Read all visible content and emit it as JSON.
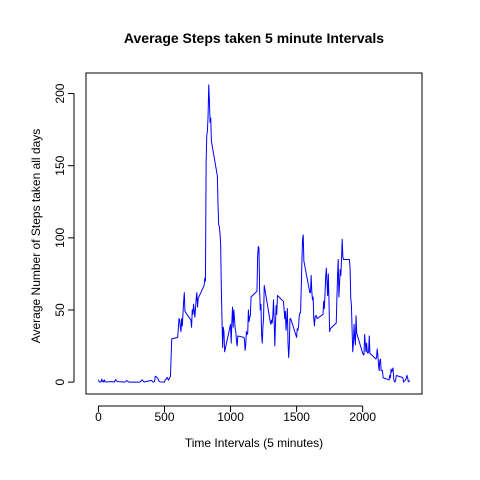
{
  "chart_data": {
    "type": "line",
    "title": "Average Steps taken 5 minute Intervals",
    "xlabel": "Time Intervals (5 minutes)",
    "ylabel": "Average Number of Steps taken all days",
    "xlim": [
      0,
      2355
    ],
    "ylim": [
      0,
      206
    ],
    "x_ticks": [
      0,
      500,
      1000,
      1500,
      2000
    ],
    "y_ticks": [
      0,
      50,
      100,
      150,
      200
    ],
    "grid": false,
    "legend": "none",
    "line_color": "#0000ff",
    "series": [
      {
        "points": [
          [
            0,
            1.7
          ],
          [
            5,
            0.3
          ],
          [
            10,
            0.1
          ],
          [
            15,
            0.2
          ],
          [
            20,
            0.1
          ],
          [
            25,
            2.1
          ],
          [
            30,
            0.5
          ],
          [
            35,
            0.9
          ],
          [
            40,
            0
          ],
          [
            45,
            1.5
          ],
          [
            50,
            0.3
          ],
          [
            55,
            0.1
          ],
          [
            100,
            0.3
          ],
          [
            110,
            0.2
          ],
          [
            120,
            0
          ],
          [
            130,
            1.8
          ],
          [
            140,
            0.4
          ],
          [
            150,
            0.3
          ],
          [
            200,
            0
          ],
          [
            215,
            1.1
          ],
          [
            230,
            0
          ],
          [
            245,
            0
          ],
          [
            300,
            0
          ],
          [
            315,
            0
          ],
          [
            330,
            1.6
          ],
          [
            345,
            0.1
          ],
          [
            400,
            1.2
          ],
          [
            415,
            0
          ],
          [
            425,
            0.4
          ],
          [
            430,
            4.1
          ],
          [
            440,
            3.5
          ],
          [
            450,
            2.5
          ],
          [
            455,
            1.1
          ],
          [
            465,
            0.2
          ],
          [
            500,
            0
          ],
          [
            505,
            1.6
          ],
          [
            515,
            2.2
          ],
          [
            520,
            3.3
          ],
          [
            530,
            1.4
          ],
          [
            545,
            4.0
          ],
          [
            550,
            17
          ],
          [
            555,
            30
          ],
          [
            600,
            31
          ],
          [
            610,
            44
          ],
          [
            615,
            43
          ],
          [
            620,
            38
          ],
          [
            625,
            35
          ],
          [
            630,
            44
          ],
          [
            635,
            39
          ],
          [
            640,
            48
          ],
          [
            645,
            56
          ],
          [
            650,
            62
          ],
          [
            655,
            49
          ],
          [
            700,
            43
          ],
          [
            705,
            38
          ],
          [
            710,
            50
          ],
          [
            715,
            47
          ],
          [
            720,
            54
          ],
          [
            730,
            45
          ],
          [
            740,
            58
          ],
          [
            745,
            62
          ],
          [
            750,
            52
          ],
          [
            755,
            58
          ],
          [
            800,
            67
          ],
          [
            805,
            72
          ],
          [
            810,
            70
          ],
          [
            815,
            152
          ],
          [
            820,
            171
          ],
          [
            825,
            174
          ],
          [
            830,
            185
          ],
          [
            835,
            206
          ],
          [
            840,
            195
          ],
          [
            845,
            180
          ],
          [
            850,
            183
          ],
          [
            855,
            167
          ],
          [
            900,
            143
          ],
          [
            905,
            124
          ],
          [
            910,
            109
          ],
          [
            915,
            108
          ],
          [
            920,
            103
          ],
          [
            925,
            96
          ],
          [
            930,
            66
          ],
          [
            935,
            45
          ],
          [
            940,
            24
          ],
          [
            945,
            38
          ],
          [
            950,
            35
          ],
          [
            955,
            21
          ],
          [
            1000,
            40
          ],
          [
            1005,
            27
          ],
          [
            1010,
            42
          ],
          [
            1015,
            52
          ],
          [
            1020,
            38
          ],
          [
            1025,
            50
          ],
          [
            1030,
            44
          ],
          [
            1035,
            37
          ],
          [
            1040,
            35
          ],
          [
            1045,
            28
          ],
          [
            1050,
            25
          ],
          [
            1055,
            32
          ],
          [
            1100,
            31
          ],
          [
            1105,
            30
          ],
          [
            1110,
            22
          ],
          [
            1115,
            26
          ],
          [
            1120,
            35
          ],
          [
            1125,
            33
          ],
          [
            1130,
            34
          ],
          [
            1135,
            50
          ],
          [
            1140,
            42
          ],
          [
            1145,
            45
          ],
          [
            1150,
            46
          ],
          [
            1155,
            59
          ],
          [
            1200,
            63
          ],
          [
            1205,
            87
          ],
          [
            1210,
            94
          ],
          [
            1215,
            93
          ],
          [
            1220,
            64
          ],
          [
            1225,
            50
          ],
          [
            1230,
            54
          ],
          [
            1235,
            33
          ],
          [
            1240,
            27
          ],
          [
            1245,
            38
          ],
          [
            1250,
            45
          ],
          [
            1255,
            67
          ],
          [
            1300,
            42
          ],
          [
            1305,
            40
          ],
          [
            1310,
            43
          ],
          [
            1315,
            41
          ],
          [
            1320,
            46
          ],
          [
            1325,
            57
          ],
          [
            1330,
            43
          ],
          [
            1335,
            25
          ],
          [
            1340,
            40
          ],
          [
            1345,
            53
          ],
          [
            1350,
            47
          ],
          [
            1355,
            60
          ],
          [
            1400,
            56
          ],
          [
            1405,
            51
          ],
          [
            1410,
            44
          ],
          [
            1415,
            49
          ],
          [
            1420,
            36
          ],
          [
            1425,
            43
          ],
          [
            1430,
            51
          ],
          [
            1435,
            27
          ],
          [
            1440,
            17
          ],
          [
            1445,
            26
          ],
          [
            1450,
            44
          ],
          [
            1455,
            44
          ],
          [
            1500,
            31
          ],
          [
            1505,
            37
          ],
          [
            1510,
            36
          ],
          [
            1515,
            39
          ],
          [
            1520,
            46
          ],
          [
            1525,
            48
          ],
          [
            1530,
            48
          ],
          [
            1535,
            65
          ],
          [
            1540,
            83
          ],
          [
            1545,
            99
          ],
          [
            1550,
            102
          ],
          [
            1555,
            84
          ],
          [
            1600,
            62
          ],
          [
            1605,
            62
          ],
          [
            1610,
            74
          ],
          [
            1615,
            63
          ],
          [
            1620,
            57
          ],
          [
            1625,
            59
          ],
          [
            1630,
            44
          ],
          [
            1635,
            39
          ],
          [
            1640,
            45
          ],
          [
            1645,
            46
          ],
          [
            1650,
            46
          ],
          [
            1655,
            44
          ],
          [
            1700,
            47
          ],
          [
            1705,
            56
          ],
          [
            1710,
            51
          ],
          [
            1715,
            61
          ],
          [
            1720,
            73
          ],
          [
            1725,
            79
          ],
          [
            1730,
            69
          ],
          [
            1735,
            60
          ],
          [
            1740,
            75
          ],
          [
            1745,
            57
          ],
          [
            1750,
            35
          ],
          [
            1755,
            37
          ],
          [
            1800,
            41
          ],
          [
            1805,
            58
          ],
          [
            1810,
            74
          ],
          [
            1815,
            85
          ],
          [
            1820,
            59
          ],
          [
            1825,
            68
          ],
          [
            1830,
            78
          ],
          [
            1835,
            74
          ],
          [
            1840,
            85
          ],
          [
            1845,
            99
          ],
          [
            1850,
            87
          ],
          [
            1855,
            85
          ],
          [
            1900,
            85
          ],
          [
            1905,
            78
          ],
          [
            1910,
            58
          ],
          [
            1915,
            53
          ],
          [
            1920,
            36
          ],
          [
            1925,
            21
          ],
          [
            1930,
            27
          ],
          [
            1935,
            40
          ],
          [
            1940,
            30
          ],
          [
            1945,
            26
          ],
          [
            1950,
            46
          ],
          [
            1955,
            34
          ],
          [
            2000,
            20
          ],
          [
            2005,
            19
          ],
          [
            2010,
            19
          ],
          [
            2015,
            33
          ],
          [
            2020,
            27
          ],
          [
            2025,
            21
          ],
          [
            2030,
            27
          ],
          [
            2035,
            21
          ],
          [
            2040,
            20
          ],
          [
            2045,
            21
          ],
          [
            2050,
            32
          ],
          [
            2055,
            20
          ],
          [
            2100,
            16
          ],
          [
            2105,
            17
          ],
          [
            2110,
            23
          ],
          [
            2115,
            19
          ],
          [
            2120,
            12
          ],
          [
            2125,
            8
          ],
          [
            2130,
            15
          ],
          [
            2135,
            16
          ],
          [
            2140,
            8
          ],
          [
            2145,
            8
          ],
          [
            2150,
            8
          ],
          [
            2155,
            3
          ],
          [
            2200,
            1.5
          ],
          [
            2205,
            4.7
          ],
          [
            2210,
            3
          ],
          [
            2215,
            9
          ],
          [
            2220,
            7
          ],
          [
            2225,
            8.7
          ],
          [
            2230,
            9.8
          ],
          [
            2235,
            2.2
          ],
          [
            2240,
            0.3
          ],
          [
            2245,
            0.1
          ],
          [
            2250,
            1.6
          ],
          [
            2255,
            4.6
          ],
          [
            2300,
            3.3
          ],
          [
            2305,
            2.8
          ],
          [
            2310,
            0
          ],
          [
            2315,
            0.8
          ],
          [
            2320,
            1
          ],
          [
            2325,
            1.6
          ],
          [
            2330,
            2.6
          ],
          [
            2335,
            4.7
          ],
          [
            2340,
            3.3
          ],
          [
            2345,
            0.6
          ],
          [
            2350,
            0.2
          ],
          [
            2355,
            1.1
          ]
        ]
      }
    ]
  }
}
